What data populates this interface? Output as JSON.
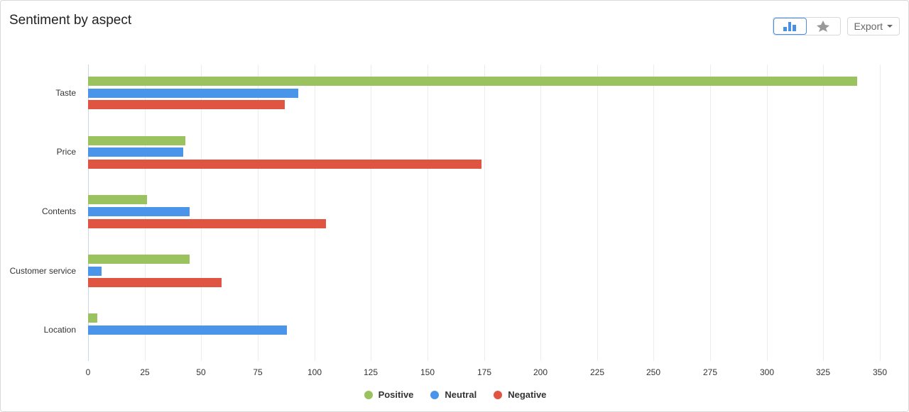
{
  "header": {
    "title": "Sentiment by aspect",
    "export_label": "Export"
  },
  "toolbar": {
    "icons": [
      "bar-chart-icon",
      "spider-chart-icon"
    ],
    "active": "bar-chart-icon"
  },
  "colors": {
    "positive": "#9ac25e",
    "neutral": "#4a95ea",
    "negative": "#e05442"
  },
  "chart_data": {
    "type": "bar",
    "orientation": "horizontal",
    "title": "Sentiment by aspect",
    "categories": [
      "Taste",
      "Price",
      "Contents",
      "Customer service",
      "Location"
    ],
    "series": [
      {
        "name": "Positive",
        "color": "#9ac25e",
        "values": [
          340,
          43,
          26,
          45,
          4
        ]
      },
      {
        "name": "Neutral",
        "color": "#4a95ea",
        "values": [
          93,
          42,
          45,
          6,
          88
        ]
      },
      {
        "name": "Negative",
        "color": "#e05442",
        "values": [
          87,
          174,
          105,
          59,
          0
        ]
      }
    ],
    "xlabel": "",
    "ylabel": "",
    "xlim": [
      0,
      350
    ],
    "xticks": [
      "0",
      "25",
      "50",
      "75",
      "100",
      "125",
      "150",
      "175",
      "200",
      "225",
      "250",
      "275",
      "300",
      "325",
      "350"
    ],
    "grid": true,
    "legend_position": "bottom"
  }
}
